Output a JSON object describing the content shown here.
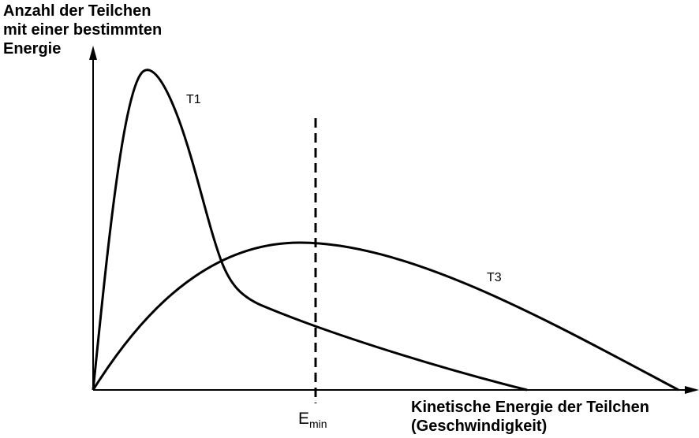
{
  "y_axis": {
    "label_lines": [
      "Anzahl der Teilchen",
      "mit einer bestimmten",
      "Energie"
    ]
  },
  "x_axis": {
    "label_lines": [
      "Kinetische Energie der Teilchen",
      "(Geschwindigkeit)"
    ]
  },
  "curves": [
    {
      "label": "T1"
    },
    {
      "label": "T3"
    }
  ],
  "threshold": {
    "symbol": "E",
    "subscript": "min",
    "style": "dashed"
  },
  "colors": {
    "stroke": "#000000",
    "background": "#ffffff"
  }
}
